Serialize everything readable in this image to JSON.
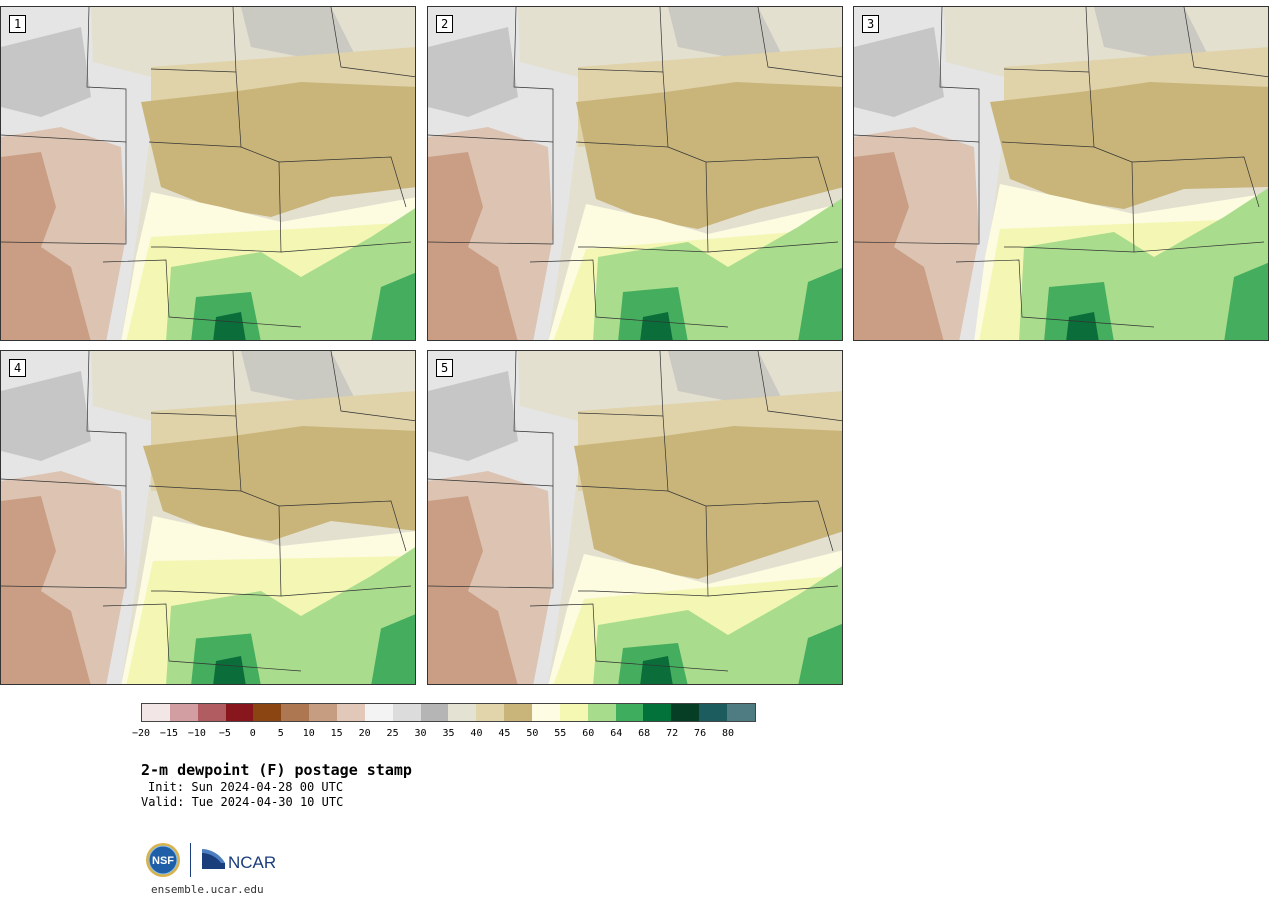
{
  "figure": {
    "title": "2-m dewpoint (F) postage stamp",
    "init": "Init: Sun 2024-04-28 00 UTC",
    "valid": "Valid: Tue 2024-04-30 10 UTC",
    "site": "ensemble.ucar.edu",
    "logo_left": "NSF",
    "logo_right": "NCAR"
  },
  "members": [
    "1",
    "2",
    "3",
    "4",
    "5"
  ],
  "colorbar": {
    "colors": [
      "#f3e6e6",
      "#d39ea2",
      "#b05c60",
      "#88161d",
      "#8b4513",
      "#ad7851",
      "#c79d82",
      "#e1c8b8",
      "#f3f3f3",
      "#dcdcdc",
      "#b5b5b5",
      "#e3e2d3",
      "#e2d4ab",
      "#c9b57a",
      "#fefde4",
      "#f5f8b2",
      "#a6dc8c",
      "#3fad5e",
      "#02713a",
      "#053d25",
      "#1c5c5f",
      "#4e7c82"
    ],
    "tick_labels": [
      "−20",
      "−15",
      "−10",
      "−5",
      "0",
      "5",
      "10",
      "15",
      "20",
      "25",
      "30",
      "35",
      "40",
      "45",
      "50",
      "55",
      "60",
      "64",
      "68",
      "72",
      "76",
      "80"
    ]
  },
  "map_colors": {
    "brown_dark": "#c6987c",
    "brown_light": "#dcc3b2",
    "gray_light": "#e5e5e5",
    "gray": "#b9b9b9",
    "beige": "#e3e0d0",
    "tan": "#e0d2a9",
    "khaki": "#c9b57a",
    "cream": "#fdfbe0",
    "yellow": "#f3f7b3",
    "green_light": "#a9dc8d",
    "green": "#44ad5e",
    "green_dark": "#0b6e3a",
    "border": "#333333"
  }
}
